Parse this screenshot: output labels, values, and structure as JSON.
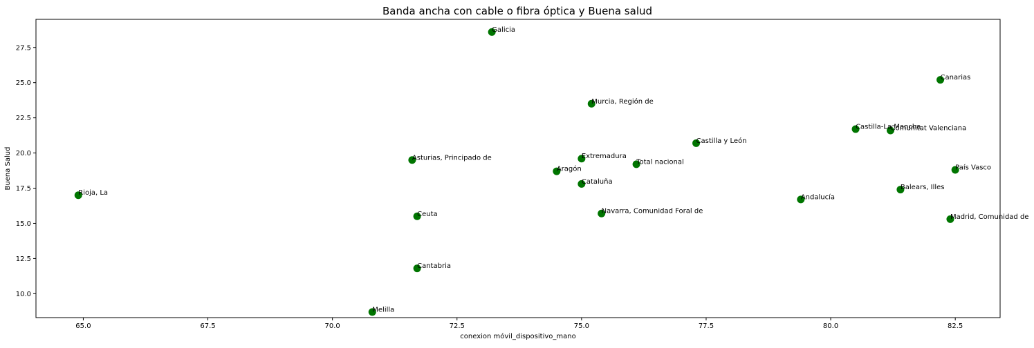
{
  "chart_data": {
    "type": "scatter",
    "title": "Banda ancha con cable o fibra óptica y Buena salud",
    "xlabel": "conexion móvil_dispositivo_mano",
    "ylabel": "Buena Salud",
    "xlim": [
      64.05,
      83.4
    ],
    "ylim": [
      8.3,
      29.5
    ],
    "xticks": [
      65.0,
      67.5,
      70.0,
      72.5,
      75.0,
      77.5,
      80.0,
      82.5
    ],
    "xtick_labels": [
      "65.0",
      "67.5",
      "70.0",
      "72.5",
      "75.0",
      "77.5",
      "80.0",
      "82.5"
    ],
    "yticks": [
      10.0,
      12.5,
      15.0,
      17.5,
      20.0,
      22.5,
      25.0,
      27.5
    ],
    "ytick_labels": [
      "10.0",
      "12.5",
      "15.0",
      "17.5",
      "20.0",
      "22.5",
      "25.0",
      "27.5"
    ],
    "grid": false,
    "marker_color": "#007500",
    "points": [
      {
        "label": "Galicia",
        "x": 73.2,
        "y": 28.6
      },
      {
        "label": "Canarias",
        "x": 82.2,
        "y": 25.2
      },
      {
        "label": "Murcia, Región de",
        "x": 75.2,
        "y": 23.5
      },
      {
        "label": "Castilla-La Mancha",
        "x": 80.5,
        "y": 21.7
      },
      {
        "label": "Comunitat Valenciana",
        "x": 81.2,
        "y": 21.6
      },
      {
        "label": "Castilla y León",
        "x": 77.3,
        "y": 20.7
      },
      {
        "label": "Asturias, Principado de",
        "x": 71.6,
        "y": 19.5
      },
      {
        "label": "Extremadura",
        "x": 75.0,
        "y": 19.6
      },
      {
        "label": "Total nacional",
        "x": 76.1,
        "y": 19.2
      },
      {
        "label": "Aragón",
        "x": 74.5,
        "y": 18.7
      },
      {
        "label": "País Vasco",
        "x": 82.5,
        "y": 18.8
      },
      {
        "label": "Cataluña",
        "x": 75.0,
        "y": 17.8
      },
      {
        "label": "Balears, Illes",
        "x": 81.4,
        "y": 17.4
      },
      {
        "label": "Rioja, La",
        "x": 64.9,
        "y": 17.0
      },
      {
        "label": "Andalucía",
        "x": 79.4,
        "y": 16.7
      },
      {
        "label": "Navarra, Comunidad Foral de",
        "x": 75.4,
        "y": 15.7
      },
      {
        "label": "Ceuta",
        "x": 71.7,
        "y": 15.5
      },
      {
        "label": "Madrid, Comunidad de",
        "x": 82.4,
        "y": 15.3
      },
      {
        "label": "Cantabria",
        "x": 71.7,
        "y": 11.8
      },
      {
        "label": "Melilla",
        "x": 70.8,
        "y": 8.7
      }
    ]
  }
}
